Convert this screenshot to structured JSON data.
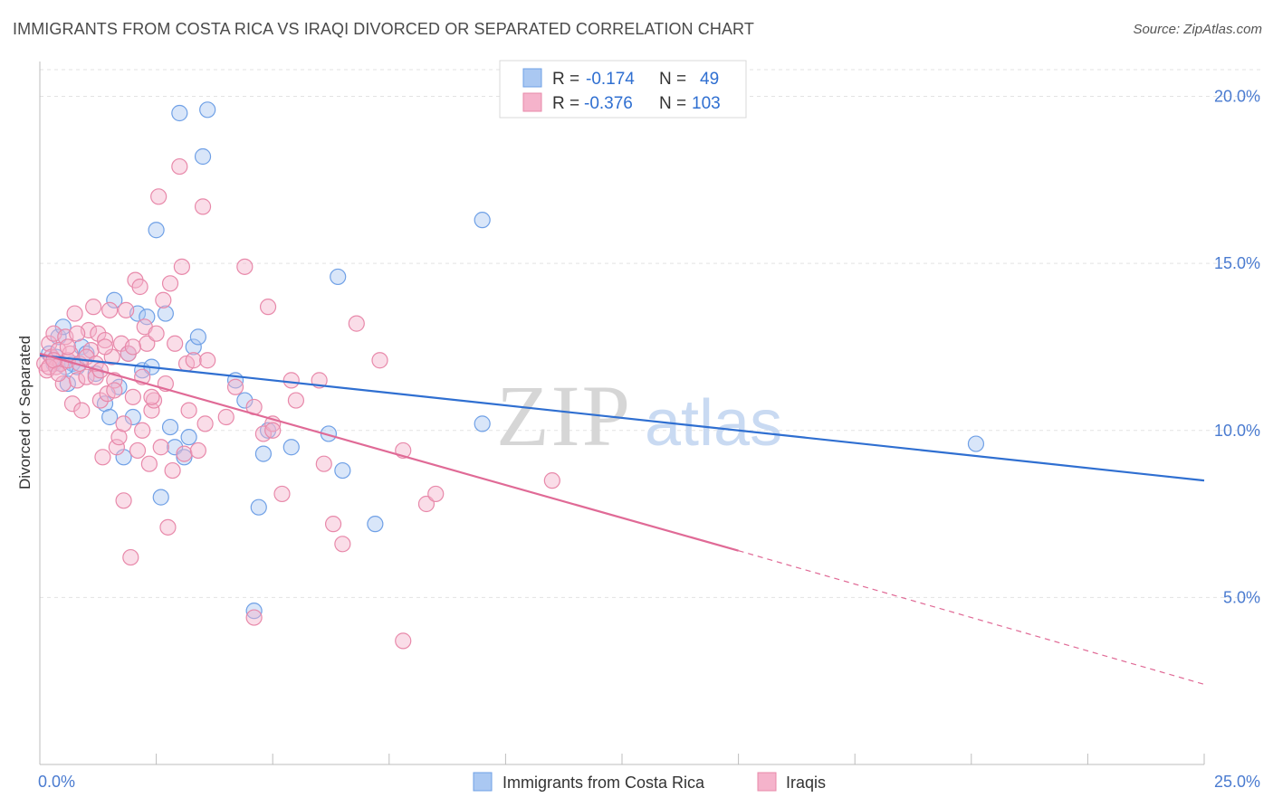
{
  "header": {
    "title": "IMMIGRANTS FROM COSTA RICA VS IRAQI DIVORCED OR SEPARATED CORRELATION CHART",
    "source": "Source: ZipAtlas.com"
  },
  "watermark": {
    "part1": "ZIP",
    "part2": "atlas"
  },
  "legend": {
    "rows": [
      {
        "r_label": "R =",
        "r_value": "-0.174",
        "n_label": "N =",
        "n_value": "49",
        "color": "#aac8f2"
      },
      {
        "r_label": "R =",
        "r_value": "-0.376",
        "n_label": "N =",
        "n_value": "103",
        "color": "#f5b3cb"
      }
    ]
  },
  "chart_data": {
    "type": "scatter",
    "title": "IMMIGRANTS FROM COSTA RICA VS IRAQI DIVORCED OR SEPARATED CORRELATION CHART",
    "xlabel": "",
    "ylabel": "Divorced or Separated",
    "xlim": [
      0,
      25
    ],
    "ylim": [
      0,
      20.8
    ],
    "x_tick_labels": [
      "0.0%",
      "25.0%"
    ],
    "y_ticks": [
      5,
      10,
      15,
      20
    ],
    "y_tick_labels": [
      "5.0%",
      "10.0%",
      "15.0%",
      "20.0%"
    ],
    "grid": true,
    "legend_position": "top-center",
    "series": [
      {
        "name": "Immigrants from Costa Rica",
        "color": "#6fa0e6",
        "fill": "#aac8f2",
        "trend": {
          "x": [
            0,
            25
          ],
          "y": [
            12.25,
            8.5
          ],
          "color": "#2f6fd1"
        },
        "points": [
          [
            0.2,
            12.3
          ],
          [
            0.3,
            12.0
          ],
          [
            0.4,
            12.8
          ],
          [
            0.5,
            13.1
          ],
          [
            0.6,
            11.4
          ],
          [
            0.7,
            12.0
          ],
          [
            0.8,
            11.9
          ],
          [
            0.9,
            12.5
          ],
          [
            1.0,
            12.3
          ],
          [
            1.2,
            11.7
          ],
          [
            1.4,
            10.8
          ],
          [
            1.5,
            10.4
          ],
          [
            1.6,
            13.9
          ],
          [
            1.7,
            11.3
          ],
          [
            1.8,
            9.2
          ],
          [
            1.9,
            12.3
          ],
          [
            2.0,
            10.4
          ],
          [
            2.1,
            13.5
          ],
          [
            2.2,
            11.8
          ],
          [
            2.3,
            13.4
          ],
          [
            2.4,
            11.9
          ],
          [
            2.5,
            16.0
          ],
          [
            2.6,
            8.0
          ],
          [
            2.7,
            13.5
          ],
          [
            2.8,
            10.1
          ],
          [
            2.9,
            9.5
          ],
          [
            3.0,
            19.5
          ],
          [
            3.1,
            9.2
          ],
          [
            3.2,
            9.8
          ],
          [
            3.3,
            12.5
          ],
          [
            3.4,
            12.8
          ],
          [
            3.5,
            18.2
          ],
          [
            3.6,
            19.6
          ],
          [
            4.2,
            11.5
          ],
          [
            4.4,
            10.9
          ],
          [
            4.6,
            4.6
          ],
          [
            4.7,
            7.7
          ],
          [
            4.8,
            9.3
          ],
          [
            4.9,
            10.0
          ],
          [
            5.4,
            9.5
          ],
          [
            6.2,
            9.9
          ],
          [
            6.4,
            14.6
          ],
          [
            6.5,
            8.8
          ],
          [
            7.2,
            7.2
          ],
          [
            9.5,
            16.3
          ],
          [
            9.5,
            10.2
          ],
          [
            20.1,
            9.6
          ],
          [
            0.35,
            12.2
          ],
          [
            0.55,
            11.9
          ]
        ]
      },
      {
        "name": "Iraqis",
        "color": "#e889aa",
        "fill": "#f5b3cb",
        "trend": {
          "x": [
            0,
            15
          ],
          "y": [
            12.3,
            6.4
          ],
          "dash_x": [
            15,
            25
          ],
          "dash_y": [
            6.4,
            2.4
          ],
          "color": "#e06a96"
        },
        "points": [
          [
            0.1,
            12.0
          ],
          [
            0.15,
            11.8
          ],
          [
            0.2,
            12.6
          ],
          [
            0.25,
            12.2
          ],
          [
            0.3,
            12.9
          ],
          [
            0.35,
            11.9
          ],
          [
            0.4,
            12.4
          ],
          [
            0.45,
            12.0
          ],
          [
            0.5,
            11.4
          ],
          [
            0.55,
            12.8
          ],
          [
            0.6,
            12.1
          ],
          [
            0.65,
            12.3
          ],
          [
            0.7,
            10.8
          ],
          [
            0.75,
            13.5
          ],
          [
            0.8,
            11.5
          ],
          [
            0.85,
            12.0
          ],
          [
            0.9,
            10.6
          ],
          [
            1.0,
            11.6
          ],
          [
            1.05,
            13.0
          ],
          [
            1.1,
            12.4
          ],
          [
            1.15,
            13.7
          ],
          [
            1.2,
            11.6
          ],
          [
            1.25,
            12.9
          ],
          [
            1.3,
            10.9
          ],
          [
            1.35,
            9.2
          ],
          [
            1.4,
            12.7
          ],
          [
            1.45,
            11.1
          ],
          [
            1.5,
            13.6
          ],
          [
            1.55,
            12.2
          ],
          [
            1.6,
            11.5
          ],
          [
            1.65,
            9.5
          ],
          [
            1.7,
            9.8
          ],
          [
            1.75,
            12.6
          ],
          [
            1.8,
            7.9
          ],
          [
            1.85,
            13.6
          ],
          [
            1.9,
            12.3
          ],
          [
            1.95,
            6.2
          ],
          [
            2.0,
            11.0
          ],
          [
            2.05,
            14.5
          ],
          [
            2.1,
            9.4
          ],
          [
            2.15,
            14.3
          ],
          [
            2.2,
            11.6
          ],
          [
            2.25,
            13.1
          ],
          [
            2.3,
            12.6
          ],
          [
            2.35,
            9.0
          ],
          [
            2.4,
            10.6
          ],
          [
            2.45,
            10.9
          ],
          [
            2.5,
            12.9
          ],
          [
            2.55,
            17.0
          ],
          [
            2.6,
            9.5
          ],
          [
            2.65,
            13.9
          ],
          [
            2.7,
            11.4
          ],
          [
            2.75,
            7.1
          ],
          [
            2.8,
            14.4
          ],
          [
            2.85,
            8.8
          ],
          [
            2.9,
            12.6
          ],
          [
            3.0,
            17.9
          ],
          [
            3.05,
            14.9
          ],
          [
            3.1,
            9.3
          ],
          [
            3.15,
            12.0
          ],
          [
            3.2,
            10.6
          ],
          [
            3.3,
            12.1
          ],
          [
            3.4,
            9.4
          ],
          [
            3.5,
            16.7
          ],
          [
            3.55,
            10.2
          ],
          [
            3.6,
            12.1
          ],
          [
            4.0,
            10.4
          ],
          [
            4.2,
            11.3
          ],
          [
            4.4,
            14.9
          ],
          [
            4.6,
            10.7
          ],
          [
            4.8,
            9.9
          ],
          [
            4.9,
            13.7
          ],
          [
            5.0,
            10.2
          ],
          [
            5.2,
            8.1
          ],
          [
            5.4,
            11.5
          ],
          [
            5.5,
            10.9
          ],
          [
            6.0,
            11.5
          ],
          [
            6.1,
            9.0
          ],
          [
            6.3,
            7.2
          ],
          [
            6.5,
            6.6
          ],
          [
            6.8,
            13.2
          ],
          [
            7.3,
            12.1
          ],
          [
            7.8,
            9.4
          ],
          [
            7.8,
            3.7
          ],
          [
            8.3,
            7.8
          ],
          [
            8.5,
            8.1
          ],
          [
            11.0,
            8.5
          ],
          [
            0.2,
            11.9
          ],
          [
            0.3,
            12.1
          ],
          [
            0.4,
            11.7
          ],
          [
            0.6,
            12.5
          ],
          [
            0.8,
            12.9
          ],
          [
            1.0,
            12.2
          ],
          [
            1.2,
            12.0
          ],
          [
            1.4,
            12.5
          ],
          [
            1.6,
            11.2
          ],
          [
            1.8,
            10.2
          ],
          [
            2.0,
            12.5
          ],
          [
            2.2,
            10.0
          ],
          [
            2.4,
            11.0
          ],
          [
            4.6,
            4.4
          ],
          [
            5.0,
            10.0
          ],
          [
            1.3,
            11.8
          ]
        ]
      }
    ]
  }
}
